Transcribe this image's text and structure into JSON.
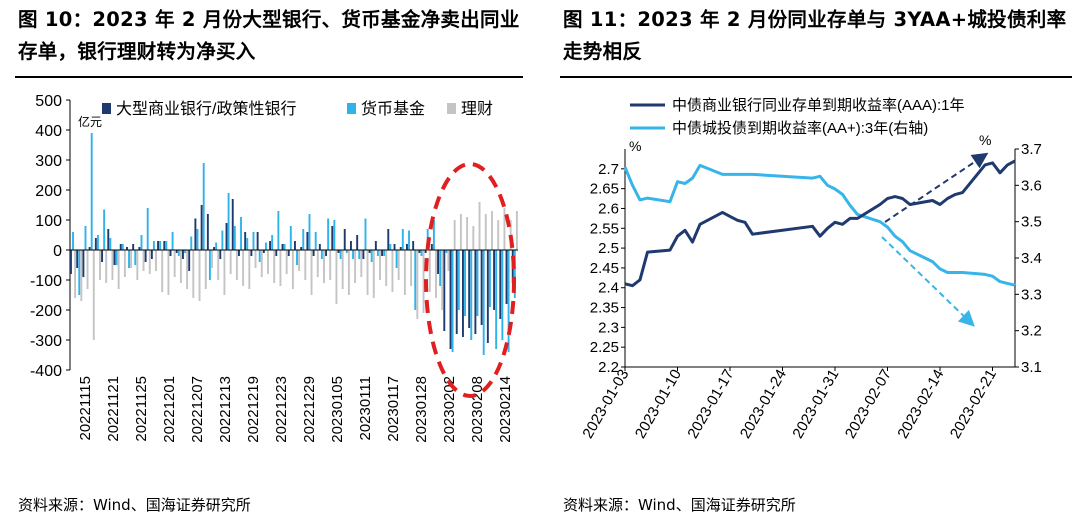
{
  "left_title": "图 10：2023 年 2 月份大型银行、货币基金净卖出同业存单，银行理财转为净买入",
  "right_title": "图 11：2023 年 2 月份同业存单与 3YAA+城投债利率走势相反",
  "left_source": "资料来源：Wind、国海证券研究所",
  "right_source": "资料来源：Wind、国海证券研究所",
  "colors": {
    "bank": "#1f3a6e",
    "mmf": "#2eb4ea",
    "wmp": "#c4c4c4",
    "ncd_line": "#1f3a6e",
    "chengtou_line": "#37b5e8",
    "highlight": "#e02020"
  },
  "chart_data": [
    {
      "type": "bar",
      "unit_label": "亿元",
      "ylim": [
        -400,
        500
      ],
      "yticks": [
        -400,
        -300,
        -200,
        -100,
        0,
        100,
        200,
        300,
        400,
        500
      ],
      "x_tick_labels": [
        "20221115",
        "20221121",
        "20221125",
        "20221201",
        "20221207",
        "20221213",
        "20221219",
        "20221223",
        "20221229",
        "20230105",
        "20230111",
        "20230117",
        "20230128",
        "20230202",
        "20230208",
        "20230214"
      ],
      "x_start": "20221115",
      "x_end": "20230217",
      "legend": [
        "大型商业银行/政策性银行",
        "货币基金",
        "理财"
      ],
      "legend_position": "top",
      "series": [
        {
          "name": "大型商业银行/政策性银行",
          "values": [
            -80,
            -60,
            -90,
            10,
            40,
            -40,
            70,
            -50,
            20,
            10,
            20,
            10,
            -40,
            -30,
            30,
            30,
            -20,
            -10,
            -30,
            -70,
            105,
            150,
            120,
            10,
            -30,
            90,
            170,
            -20,
            60,
            -20,
            60,
            -10,
            30,
            -20,
            20,
            -20,
            30,
            10,
            60,
            -20,
            20,
            -20,
            80,
            -10,
            70,
            30,
            50,
            -30,
            -10,
            30,
            -20,
            70,
            20,
            10,
            20,
            30,
            -10,
            -10,
            20,
            -80,
            -270,
            -330,
            -280,
            -290,
            -260,
            -280,
            -250,
            -310,
            -200,
            -230,
            -180,
            -110
          ]
        },
        {
          "name": "货币基金",
          "values": [
            60,
            -150,
            80,
            390,
            50,
            135,
            40,
            -50,
            20,
            -60,
            -50,
            50,
            140,
            30,
            30,
            30,
            60,
            -20,
            -10,
            45,
            70,
            290,
            -100,
            25,
            65,
            190,
            80,
            110,
            40,
            60,
            -40,
            25,
            50,
            130,
            20,
            80,
            -50,
            70,
            120,
            60,
            -30,
            105,
            100,
            -30,
            -10,
            -30,
            -30,
            105,
            -40,
            -20,
            -20,
            20,
            -60,
            70,
            65,
            -200,
            -20,
            70,
            100,
            -120,
            -10,
            -340,
            -200,
            -220,
            -300,
            -220,
            -350,
            -190,
            -330,
            -300,
            -340,
            -160
          ]
        },
        {
          "name": "理财",
          "values": [
            -160,
            -170,
            -130,
            -300,
            -100,
            -110,
            -100,
            -130,
            -90,
            -60,
            -100,
            -70,
            -80,
            -70,
            -140,
            -150,
            -90,
            -110,
            -130,
            -160,
            -170,
            -130,
            -60,
            -100,
            -150,
            -80,
            -100,
            -120,
            -130,
            -60,
            -90,
            -80,
            -110,
            -120,
            -80,
            -130,
            -70,
            -100,
            -150,
            -90,
            -110,
            -100,
            -180,
            -130,
            -150,
            -110,
            -90,
            -150,
            -160,
            -100,
            -120,
            -140,
            -100,
            -150,
            -120,
            -230,
            -210,
            -140,
            -160,
            -200,
            -70,
            100,
            120,
            110,
            80,
            160,
            120,
            130,
            100,
            140,
            100,
            130
          ]
        }
      ]
    },
    {
      "type": "line",
      "x_tick_labels": [
        "2023-01-03",
        "2023-01-10",
        "2023-01-17",
        "2023-01-24",
        "2023-01-31",
        "2023-02-07",
        "2023-02-14",
        "2023-02-21"
      ],
      "x_range": [
        "2023-01-03",
        "2023-02-24"
      ],
      "y_left": {
        "ylim": [
          2.2,
          2.75
        ],
        "ticks": [
          2.2,
          2.25,
          2.3,
          2.35,
          2.4,
          2.45,
          2.5,
          2.55,
          2.6,
          2.65,
          2.7
        ],
        "unit": "%"
      },
      "y_right": {
        "ylim": [
          3.1,
          3.7
        ],
        "ticks": [
          3.1,
          3.2,
          3.3,
          3.4,
          3.5,
          3.6,
          3.7
        ],
        "unit": "%"
      },
      "legend_position": "top",
      "series": [
        {
          "name": "中债商业银行同业存单到期收益率(AAA):1年",
          "axis": "left",
          "x": [
            "2023-01-03",
            "2023-01-04",
            "2023-01-05",
            "2023-01-06",
            "2023-01-09",
            "2023-01-10",
            "2023-01-11",
            "2023-01-12",
            "2023-01-13",
            "2023-01-16",
            "2023-01-17",
            "2023-01-18",
            "2023-01-19",
            "2023-01-20",
            "2023-01-28",
            "2023-01-29",
            "2023-01-30",
            "2023-01-31",
            "2023-02-01",
            "2023-02-02",
            "2023-02-03",
            "2023-02-06",
            "2023-02-07",
            "2023-02-08",
            "2023-02-09",
            "2023-02-10",
            "2023-02-13",
            "2023-02-14",
            "2023-02-15",
            "2023-02-16",
            "2023-02-17",
            "2023-02-20",
            "2023-02-21",
            "2023-02-22",
            "2023-02-23",
            "2023-02-24"
          ],
          "y": [
            2.41,
            2.405,
            2.42,
            2.49,
            2.495,
            2.53,
            2.545,
            2.515,
            2.56,
            2.59,
            2.58,
            2.57,
            2.565,
            2.535,
            2.555,
            2.53,
            2.55,
            2.565,
            2.56,
            2.575,
            2.575,
            2.61,
            2.625,
            2.63,
            2.625,
            2.61,
            2.62,
            2.61,
            2.625,
            2.635,
            2.64,
            2.71,
            2.715,
            2.69,
            2.71,
            2.72
          ]
        },
        {
          "name": "中债城投债到期收益率(AA+):3年(右轴)",
          "axis": "right",
          "x": [
            "2023-01-03",
            "2023-01-04",
            "2023-01-05",
            "2023-01-06",
            "2023-01-09",
            "2023-01-10",
            "2023-01-11",
            "2023-01-12",
            "2023-01-13",
            "2023-01-16",
            "2023-01-17",
            "2023-01-18",
            "2023-01-19",
            "2023-01-20",
            "2023-01-28",
            "2023-01-29",
            "2023-01-30",
            "2023-01-31",
            "2023-02-01",
            "2023-02-02",
            "2023-02-03",
            "2023-02-06",
            "2023-02-07",
            "2023-02-08",
            "2023-02-09",
            "2023-02-10",
            "2023-02-13",
            "2023-02-14",
            "2023-02-15",
            "2023-02-16",
            "2023-02-17",
            "2023-02-20",
            "2023-02-21",
            "2023-02-22",
            "2023-02-23",
            "2023-02-24"
          ],
          "y": [
            3.65,
            3.6,
            3.56,
            3.565,
            3.555,
            3.61,
            3.605,
            3.62,
            3.655,
            3.63,
            3.63,
            3.63,
            3.63,
            3.63,
            3.62,
            3.625,
            3.6,
            3.59,
            3.575,
            3.545,
            3.52,
            3.5,
            3.485,
            3.46,
            3.445,
            3.42,
            3.39,
            3.37,
            3.36,
            3.36,
            3.36,
            3.355,
            3.35,
            3.335,
            3.33,
            3.325
          ]
        }
      ]
    }
  ]
}
